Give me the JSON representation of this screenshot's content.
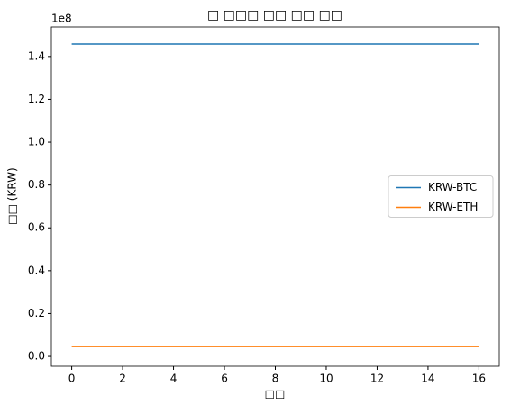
{
  "chart_data": {
    "type": "line",
    "title": "□ □□□ □□ □□ □□",
    "xlabel": "□□",
    "ylabel": "□□ (KRW)",
    "y_offset_label": "1e8",
    "x": [
      0,
      1,
      2,
      3,
      4,
      5,
      6,
      7,
      8,
      9,
      10,
      11,
      12,
      13,
      14,
      15,
      16
    ],
    "series": [
      {
        "name": "KRW-BTC",
        "color": "#1f77b4",
        "values": [
          145800000,
          145800000,
          145800000,
          145800000,
          145800000,
          145800000,
          145800000,
          145800000,
          145800000,
          145800000,
          145800000,
          145800000,
          145800000,
          145800000,
          145800000,
          145800000,
          145800000
        ]
      },
      {
        "name": "KRW-ETH",
        "color": "#ff7f0e",
        "values": [
          4600000,
          4600000,
          4600000,
          4600000,
          4600000,
          4600000,
          4600000,
          4600000,
          4600000,
          4600000,
          4600000,
          4600000,
          4600000,
          4600000,
          4600000,
          4600000,
          4600000
        ]
      }
    ],
    "xlim": [
      -0.8,
      16.8
    ],
    "ylim": [
      -4600000,
      153800000
    ],
    "xticks": [
      0,
      2,
      4,
      6,
      8,
      10,
      12,
      14,
      16
    ],
    "yticks": [
      {
        "value": 0,
        "label": "0.0"
      },
      {
        "value": 20000000,
        "label": "0.2"
      },
      {
        "value": 40000000,
        "label": "0.4"
      },
      {
        "value": 60000000,
        "label": "0.6"
      },
      {
        "value": 80000000,
        "label": "0.8"
      },
      {
        "value": 100000000,
        "label": "1.0"
      },
      {
        "value": 120000000,
        "label": "1.2"
      },
      {
        "value": 140000000,
        "label": "1.4"
      }
    ],
    "legend": "center right"
  }
}
